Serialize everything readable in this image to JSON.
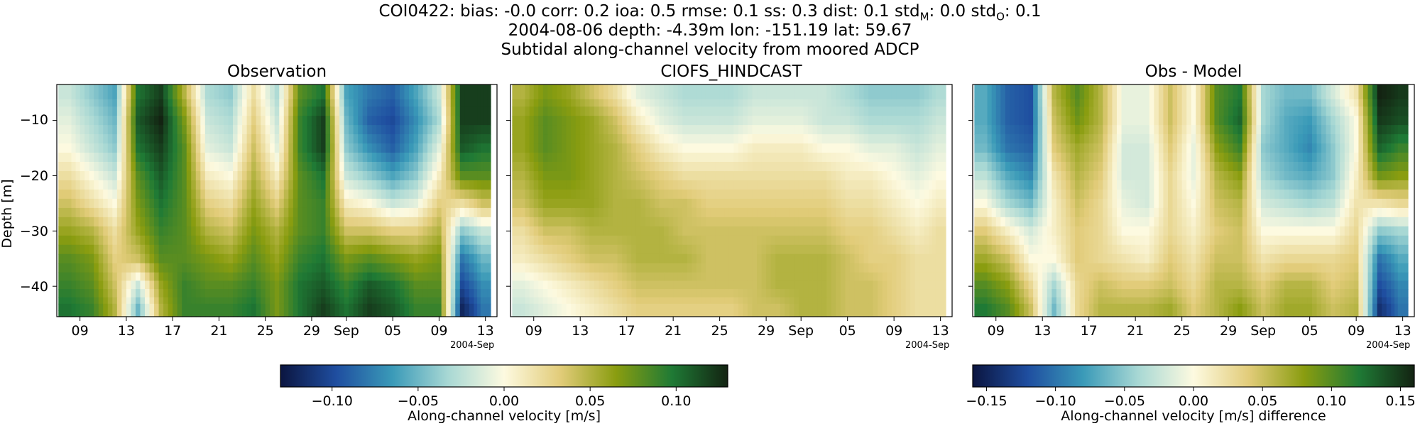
{
  "header": {
    "line1_prefix": "COI0422: bias: -0.0  corr: 0.2  ioa: 0.5  rmse: 0.1  ss: 0.3  dist: 0.1  std",
    "line1_sub_m": "M",
    "line1_mid": ": 0.0  std",
    "line1_sub_o": "O",
    "line1_suffix": ": 0.1",
    "line2": "2004-08-06 depth: -4.39m lon: -151.19 lat: 59.67",
    "line3": "Subtidal along-channel velocity from moored ADCP"
  },
  "chart_data": [
    {
      "type": "heatmap",
      "title": "Observation",
      "ylabel": "Depth [m]",
      "xlabel": "",
      "x_ticks": [
        "09",
        "13",
        "17",
        "21",
        "25",
        "29",
        "Sep",
        "05",
        "09",
        "13"
      ],
      "x_offset_label": "2004-Sep",
      "y_ticks": [
        -10,
        -20,
        -30,
        -40
      ],
      "ylim": [
        -45.5,
        -3.5
      ],
      "xlim": [
        "2004-08-07",
        "2004-09-14"
      ],
      "colormap": "gist_earth-like diverging (navy-teal-cream-olive-darkgreen)",
      "clim": [
        -0.13,
        0.13
      ],
      "grid_times": [
        "2004-08-08",
        "2004-08-10",
        "2004-08-12",
        "2004-08-14",
        "2004-08-16",
        "2004-08-18",
        "2004-08-20",
        "2004-08-22",
        "2004-08-24",
        "2004-08-26",
        "2004-08-28",
        "2004-08-30",
        "2004-09-01",
        "2004-09-03",
        "2004-09-05",
        "2004-09-07",
        "2004-09-09",
        "2004-09-11",
        "2004-09-13"
      ],
      "grid_depths": [
        -5,
        -10,
        -15,
        -20,
        -25,
        -30,
        -35,
        -40,
        -44
      ],
      "values": [
        [
          -0.02,
          -0.04,
          -0.06,
          0.1,
          0.12,
          0.05,
          -0.03,
          -0.04,
          0.02,
          -0.03,
          0.08,
          0.1,
          -0.06,
          -0.08,
          -0.09,
          -0.06,
          -0.02,
          0.12,
          0.12
        ],
        [
          -0.01,
          -0.03,
          -0.05,
          0.11,
          0.13,
          0.07,
          -0.02,
          -0.03,
          0.03,
          -0.02,
          0.09,
          0.12,
          -0.05,
          -0.09,
          -0.1,
          -0.07,
          -0.03,
          0.12,
          0.12
        ],
        [
          0.0,
          -0.02,
          -0.04,
          0.1,
          0.12,
          0.08,
          -0.01,
          -0.02,
          0.04,
          -0.01,
          0.09,
          0.12,
          -0.04,
          -0.07,
          -0.09,
          -0.06,
          -0.01,
          0.11,
          0.1
        ],
        [
          0.02,
          0.0,
          -0.02,
          0.08,
          0.11,
          0.08,
          0.01,
          0.0,
          0.05,
          0.01,
          0.08,
          0.1,
          -0.02,
          -0.04,
          -0.06,
          -0.04,
          0.01,
          0.08,
          0.08
        ],
        [
          0.04,
          0.02,
          0.0,
          0.07,
          0.1,
          0.08,
          0.03,
          0.02,
          0.06,
          0.03,
          0.08,
          0.09,
          0.01,
          0.0,
          -0.02,
          -0.01,
          0.03,
          0.02,
          0.04
        ],
        [
          0.06,
          0.05,
          0.02,
          0.06,
          0.09,
          0.08,
          0.05,
          0.04,
          0.07,
          0.05,
          0.08,
          0.09,
          0.04,
          0.04,
          0.03,
          0.03,
          0.05,
          -0.04,
          -0.02
        ],
        [
          0.08,
          0.07,
          0.03,
          0.04,
          0.08,
          0.08,
          0.07,
          0.06,
          0.08,
          0.06,
          0.09,
          0.1,
          0.07,
          0.08,
          0.07,
          0.06,
          0.07,
          -0.08,
          -0.05
        ],
        [
          0.09,
          0.08,
          0.04,
          -0.02,
          0.06,
          0.09,
          0.08,
          0.08,
          0.09,
          0.07,
          0.1,
          0.11,
          0.09,
          0.11,
          0.1,
          0.08,
          0.08,
          -0.1,
          -0.07
        ],
        [
          0.1,
          0.09,
          0.05,
          -0.05,
          0.05,
          0.09,
          0.09,
          0.09,
          0.1,
          0.07,
          0.1,
          0.12,
          0.1,
          0.12,
          0.11,
          0.09,
          0.09,
          -0.12,
          -0.08
        ]
      ]
    },
    {
      "type": "heatmap",
      "title": "CIOFS_HINDCAST",
      "x_ticks": [
        "09",
        "13",
        "17",
        "21",
        "25",
        "29",
        "Sep",
        "05",
        "09",
        "13"
      ],
      "x_offset_label": "2004-Sep",
      "clim": [
        -0.13,
        0.13
      ],
      "grid_times": [
        "2004-08-08",
        "2004-08-10",
        "2004-08-12",
        "2004-08-14",
        "2004-08-16",
        "2004-08-18",
        "2004-08-20",
        "2004-08-22",
        "2004-08-24",
        "2004-08-26",
        "2004-08-28",
        "2004-08-30",
        "2004-09-01",
        "2004-09-03",
        "2004-09-05",
        "2004-09-07",
        "2004-09-09",
        "2004-09-11",
        "2004-09-13"
      ],
      "grid_depths": [
        -5,
        -10,
        -15,
        -20,
        -25,
        -30,
        -35,
        -40,
        -44
      ],
      "values": [
        [
          0.05,
          0.07,
          0.06,
          0.04,
          0.02,
          -0.01,
          -0.02,
          -0.03,
          -0.03,
          -0.03,
          -0.02,
          -0.02,
          -0.02,
          -0.02,
          -0.03,
          -0.04,
          -0.04,
          -0.04,
          -0.03
        ],
        [
          0.06,
          0.08,
          0.07,
          0.06,
          0.04,
          0.01,
          -0.01,
          -0.02,
          -0.02,
          -0.02,
          -0.01,
          -0.01,
          -0.01,
          -0.02,
          -0.02,
          -0.03,
          -0.03,
          -0.03,
          -0.02
        ],
        [
          0.06,
          0.08,
          0.07,
          0.06,
          0.05,
          0.03,
          0.01,
          0.0,
          0.0,
          0.0,
          0.01,
          0.01,
          0.01,
          0.0,
          0.0,
          -0.01,
          -0.01,
          -0.02,
          -0.01
        ],
        [
          0.05,
          0.07,
          0.07,
          0.06,
          0.05,
          0.04,
          0.03,
          0.02,
          0.02,
          0.02,
          0.02,
          0.02,
          0.02,
          0.02,
          0.01,
          0.01,
          0.0,
          -0.01,
          0.0
        ],
        [
          0.04,
          0.06,
          0.06,
          0.06,
          0.05,
          0.05,
          0.04,
          0.04,
          0.03,
          0.03,
          0.03,
          0.03,
          0.03,
          0.03,
          0.02,
          0.02,
          0.01,
          0.0,
          0.01
        ],
        [
          0.02,
          0.04,
          0.04,
          0.05,
          0.05,
          0.05,
          0.05,
          0.04,
          0.04,
          0.04,
          0.04,
          0.04,
          0.04,
          0.04,
          0.03,
          0.03,
          0.02,
          0.01,
          0.02
        ],
        [
          0.01,
          0.02,
          0.03,
          0.04,
          0.04,
          0.05,
          0.05,
          0.05,
          0.04,
          0.04,
          0.04,
          0.05,
          0.05,
          0.05,
          0.04,
          0.03,
          0.03,
          0.02,
          0.02
        ],
        [
          -0.01,
          0.0,
          0.01,
          0.02,
          0.03,
          0.04,
          0.04,
          0.04,
          0.04,
          0.04,
          0.04,
          0.05,
          0.05,
          0.05,
          0.04,
          0.04,
          0.03,
          0.02,
          0.02
        ],
        [
          -0.02,
          -0.01,
          0.0,
          0.01,
          0.02,
          0.03,
          0.03,
          0.03,
          0.03,
          0.03,
          0.04,
          0.04,
          0.05,
          0.05,
          0.04,
          0.04,
          0.03,
          0.02,
          0.02
        ]
      ]
    },
    {
      "type": "heatmap",
      "title": "Obs - Model",
      "x_ticks": [
        "09",
        "13",
        "17",
        "21",
        "25",
        "29",
        "Sep",
        "05",
        "09",
        "13"
      ],
      "x_offset_label": "2004-Sep",
      "clim": [
        -0.16,
        0.16
      ],
      "grid_times": [
        "2004-08-08",
        "2004-08-10",
        "2004-08-12",
        "2004-08-14",
        "2004-08-16",
        "2004-08-18",
        "2004-08-20",
        "2004-08-22",
        "2004-08-24",
        "2004-08-26",
        "2004-08-28",
        "2004-08-30",
        "2004-09-01",
        "2004-09-03",
        "2004-09-05",
        "2004-09-07",
        "2004-09-09",
        "2004-09-11",
        "2004-09-13"
      ],
      "grid_depths": [
        -5,
        -10,
        -15,
        -20,
        -25,
        -30,
        -35,
        -40,
        -44
      ],
      "values": [
        [
          -0.07,
          -0.11,
          -0.12,
          0.06,
          0.1,
          0.06,
          -0.01,
          -0.01,
          0.05,
          0.0,
          0.1,
          0.12,
          -0.04,
          -0.06,
          -0.06,
          -0.02,
          0.02,
          0.16,
          0.15
        ],
        [
          -0.07,
          -0.11,
          -0.12,
          0.05,
          0.09,
          0.06,
          -0.01,
          -0.01,
          0.05,
          0.0,
          0.1,
          0.13,
          -0.04,
          -0.07,
          -0.08,
          -0.04,
          0.0,
          0.15,
          0.14
        ],
        [
          -0.06,
          -0.1,
          -0.11,
          0.04,
          0.07,
          0.05,
          -0.02,
          -0.02,
          0.04,
          -0.01,
          0.08,
          0.11,
          -0.05,
          -0.07,
          -0.09,
          -0.05,
          0.0,
          0.13,
          0.11
        ],
        [
          -0.03,
          -0.07,
          -0.09,
          0.02,
          0.06,
          0.04,
          -0.02,
          -0.02,
          0.03,
          -0.01,
          0.06,
          0.08,
          -0.04,
          -0.06,
          -0.07,
          -0.05,
          0.01,
          0.09,
          0.08
        ],
        [
          0.0,
          -0.04,
          -0.06,
          0.01,
          0.05,
          0.03,
          -0.01,
          -0.02,
          0.03,
          0.0,
          0.05,
          0.06,
          -0.02,
          -0.03,
          -0.04,
          -0.03,
          0.02,
          0.02,
          0.03
        ],
        [
          0.04,
          0.01,
          -0.02,
          0.01,
          0.04,
          0.03,
          0.0,
          0.0,
          0.03,
          0.01,
          0.04,
          0.05,
          0.0,
          0.0,
          0.0,
          0.0,
          0.03,
          -0.05,
          -0.04
        ],
        [
          0.07,
          0.05,
          0.0,
          0.0,
          0.04,
          0.03,
          0.02,
          0.01,
          0.04,
          0.02,
          0.05,
          0.05,
          0.02,
          0.03,
          0.03,
          0.03,
          0.04,
          -0.1,
          -0.07
        ],
        [
          0.1,
          0.08,
          0.03,
          -0.04,
          0.03,
          0.05,
          0.04,
          0.04,
          0.05,
          0.03,
          0.06,
          0.06,
          0.04,
          0.06,
          0.06,
          0.04,
          0.05,
          -0.12,
          -0.09
        ],
        [
          0.12,
          0.1,
          0.05,
          -0.06,
          0.03,
          0.06,
          0.06,
          0.06,
          0.07,
          0.04,
          0.06,
          0.08,
          0.05,
          0.07,
          0.07,
          0.05,
          0.06,
          -0.14,
          -0.1
        ]
      ]
    }
  ],
  "colorbars": [
    {
      "label": "Along-channel velocity [m/s]",
      "clim": [
        -0.13,
        0.13
      ],
      "ticks": [
        -0.1,
        -0.05,
        0.0,
        0.05,
        0.1
      ],
      "tick_labels": [
        "−0.10",
        "−0.05",
        "0.00",
        "0.05",
        "0.10"
      ]
    },
    {
      "label": "Along-channel velocity [m/s] difference",
      "clim": [
        -0.16,
        0.16
      ],
      "ticks": [
        -0.15,
        -0.1,
        -0.05,
        0.0,
        0.05,
        0.1,
        0.15
      ],
      "tick_labels": [
        "−0.15",
        "−0.10",
        "−0.05",
        "0.00",
        "0.05",
        "0.10",
        "0.15"
      ]
    }
  ],
  "y_tick_labels": [
    "−10",
    "−20",
    "−30",
    "−40"
  ],
  "colors": {
    "colormap_stops": [
      "#0b1540",
      "#1f4ea0",
      "#3a9ab8",
      "#a8d8d4",
      "#fdfae0",
      "#e2cc7a",
      "#8a9d10",
      "#1f7a35",
      "#132312"
    ]
  }
}
